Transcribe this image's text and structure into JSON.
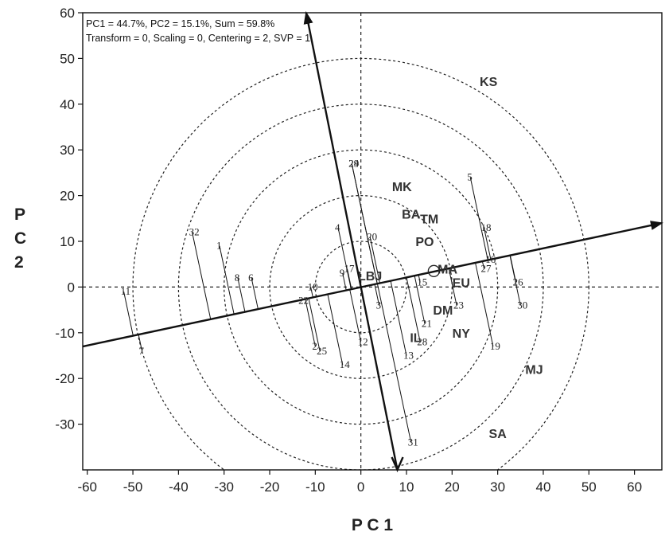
{
  "chart_data": {
    "type": "scatter",
    "annotation_line1": "PC1 = 44.7%, PC2 = 15.1%, Sum = 59.8%",
    "annotation_line2": "Transform = 0, Scaling = 0, Centering = 2, SVP = 1",
    "xlabel": "P C 1",
    "ylabel": "P\nC\n2",
    "xlim": [
      -61,
      66
    ],
    "ylim": [
      -40,
      60
    ],
    "xticks": [
      -60,
      -50,
      -40,
      -30,
      -20,
      -10,
      0,
      10,
      20,
      30,
      40,
      50,
      60
    ],
    "yticks": [
      -30,
      -20,
      -10,
      0,
      10,
      20,
      30,
      40,
      50,
      60
    ],
    "circle_radii": [
      10,
      20,
      30,
      40,
      50
    ],
    "grid": false,
    "reference_lines": {
      "x": 0,
      "y": 0,
      "style": "dashed"
    },
    "arrows": [
      {
        "from": [
          -61,
          -13
        ],
        "to": [
          66,
          14
        ]
      },
      {
        "from": [
          8,
          -40
        ],
        "to": [
          -12,
          60
        ]
      }
    ],
    "genotypes": [
      {
        "label": "1",
        "x": -31,
        "y": 9
      },
      {
        "label": "3",
        "x": 4,
        "y": -4
      },
      {
        "label": "4",
        "x": -5,
        "y": 13
      },
      {
        "label": "5",
        "x": 24,
        "y": 24
      },
      {
        "label": "6",
        "x": -24,
        "y": 2
      },
      {
        "label": "7",
        "x": -48,
        "y": -14
      },
      {
        "label": "8",
        "x": -27,
        "y": 2
      },
      {
        "label": "10",
        "x": -11,
        "y": 0
      },
      {
        "label": "11",
        "x": -52,
        "y": -1
      },
      {
        "label": "12",
        "x": 0,
        "y": -12
      },
      {
        "label": "13",
        "x": 10,
        "y": -15
      },
      {
        "label": "14",
        "x": -4,
        "y": -17
      },
      {
        "label": "15",
        "x": 13,
        "y": 1
      },
      {
        "label": "16",
        "x": 28,
        "y": 6
      },
      {
        "label": "17",
        "x": -3,
        "y": 4
      },
      {
        "label": "18",
        "x": 27,
        "y": 13
      },
      {
        "label": "19",
        "x": 29,
        "y": -13
      },
      {
        "label": "20",
        "x": 2,
        "y": 11
      },
      {
        "label": "21",
        "x": 14,
        "y": -8
      },
      {
        "label": "22",
        "x": -13,
        "y": -3
      },
      {
        "label": "23",
        "x": 21,
        "y": -4
      },
      {
        "label": "24",
        "x": -2,
        "y": 27
      },
      {
        "label": "25",
        "x": -9,
        "y": -14
      },
      {
        "label": "26",
        "x": 34,
        "y": 1
      },
      {
        "label": "27",
        "x": 27,
        "y": 4
      },
      {
        "label": "28",
        "x": 13,
        "y": -12
      },
      {
        "label": "29",
        "x": -2,
        "y": 27
      },
      {
        "label": "30",
        "x": 35,
        "y": -4
      },
      {
        "label": "31",
        "x": 11,
        "y": -34
      },
      {
        "label": "32",
        "x": -37,
        "y": 12
      },
      {
        "label": "9",
        "x": -4,
        "y": 3
      },
      {
        "label": "2",
        "x": -10,
        "y": -13
      }
    ],
    "environments": [
      {
        "label": "KS",
        "x": 28,
        "y": 45
      },
      {
        "label": "MK",
        "x": 9,
        "y": 22
      },
      {
        "label": "BA",
        "x": 11,
        "y": 16
      },
      {
        "label": "TM",
        "x": 15,
        "y": 15
      },
      {
        "label": "PO",
        "x": 14,
        "y": 10
      },
      {
        "label": "MA",
        "x": 19,
        "y": 4
      },
      {
        "label": "EU",
        "x": 22,
        "y": 1
      },
      {
        "label": "DM",
        "x": 18,
        "y": -5
      },
      {
        "label": "NY",
        "x": 22,
        "y": -10
      },
      {
        "label": "IL",
        "x": 12,
        "y": -11
      },
      {
        "label": "LBJ",
        "x": 2,
        "y": 2.5
      },
      {
        "label": "MJ",
        "x": 38,
        "y": -18
      },
      {
        "label": "SA",
        "x": 30,
        "y": -32
      }
    ],
    "marker": {
      "label": "circle",
      "x": 16,
      "y": 3.5
    }
  }
}
